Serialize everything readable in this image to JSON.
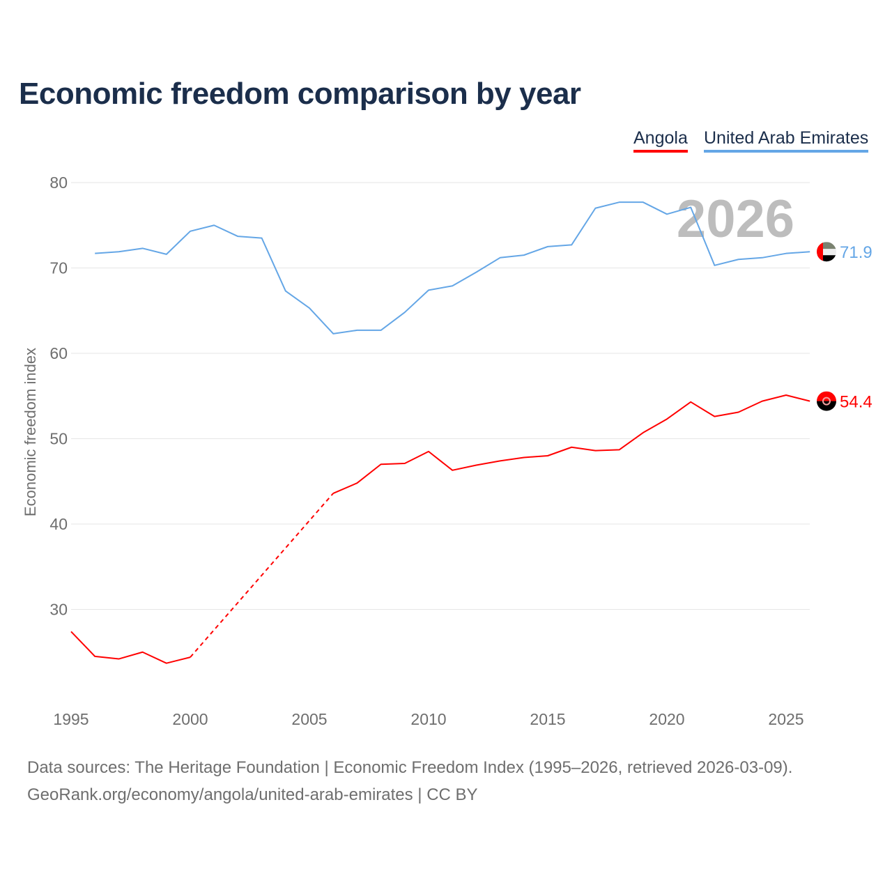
{
  "chart_data": {
    "type": "line",
    "title": "Economic freedom comparison by year",
    "xlabel": "",
    "ylabel": "Economic freedom index",
    "xlim": [
      1995,
      2026
    ],
    "ylim": [
      20,
      80
    ],
    "x_ticks": [
      1995,
      2000,
      2005,
      2010,
      2015,
      2020,
      2025
    ],
    "y_ticks": [
      30,
      40,
      50,
      60,
      70,
      80
    ],
    "grid": true,
    "legend_position": "top-right",
    "year_watermark": "2026",
    "x": [
      1995,
      1996,
      1997,
      1998,
      1999,
      2000,
      2001,
      2002,
      2003,
      2004,
      2005,
      2006,
      2007,
      2008,
      2009,
      2010,
      2011,
      2012,
      2013,
      2014,
      2015,
      2016,
      2017,
      2018,
      2019,
      2020,
      2021,
      2022,
      2023,
      2024,
      2025,
      2026
    ],
    "series": [
      {
        "name": "Angola",
        "color": "#ff0000",
        "end_label": "54.4",
        "flag": "angola-flag",
        "values": [
          27.4,
          24.5,
          24.2,
          25.0,
          23.7,
          24.4,
          null,
          null,
          null,
          null,
          null,
          43.6,
          44.8,
          47.0,
          47.1,
          48.5,
          46.3,
          46.9,
          47.4,
          47.8,
          48.0,
          49.0,
          48.6,
          48.7,
          50.7,
          52.3,
          54.3,
          52.6,
          53.1,
          54.4,
          55.1,
          54.4
        ]
      },
      {
        "name": "United Arab Emirates",
        "color": "#64a6e6",
        "end_label": "71.9",
        "flag": "uae-flag",
        "values": [
          null,
          71.7,
          71.9,
          72.3,
          71.6,
          74.3,
          75.0,
          73.7,
          73.5,
          67.3,
          65.3,
          62.3,
          62.7,
          62.7,
          64.8,
          67.4,
          67.9,
          69.5,
          71.2,
          71.5,
          72.5,
          72.7,
          77.0,
          77.7,
          77.7,
          76.3,
          77.1,
          70.3,
          71.0,
          71.2,
          71.7,
          71.9
        ]
      }
    ]
  },
  "footer": {
    "line1": "Data sources: The Heritage Foundation | Economic Freedom Index (1995–2026, retrieved 2026-03-09).",
    "line2": "GeoRank.org/economy/angola/united-arab-emirates | CC BY"
  }
}
